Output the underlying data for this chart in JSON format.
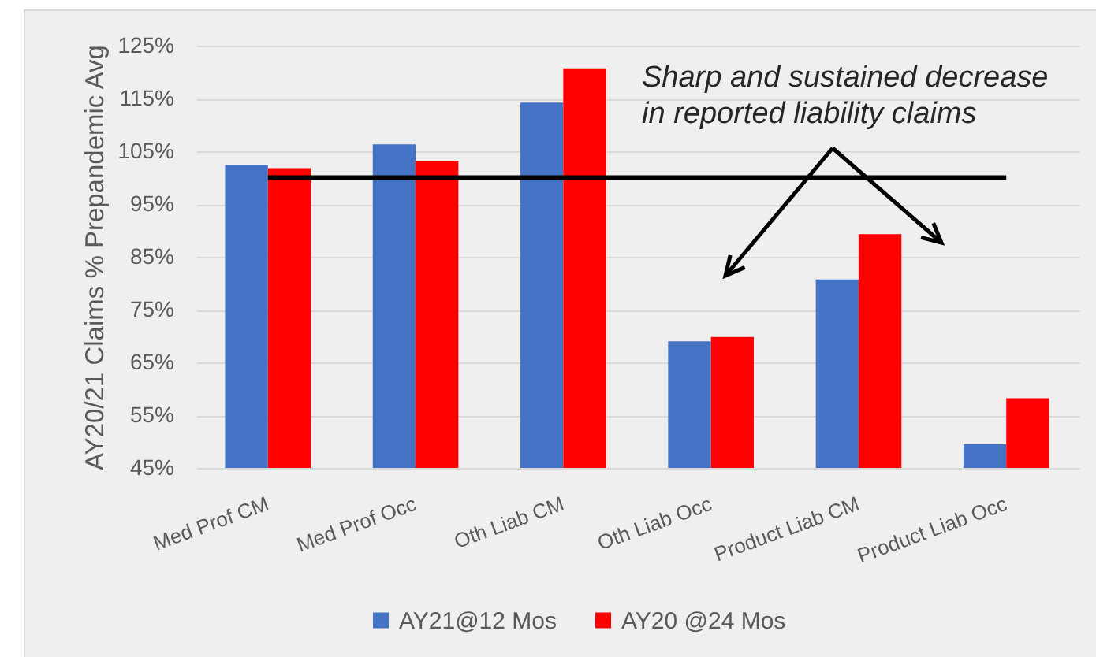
{
  "chart_data": {
    "type": "bar",
    "categories": [
      "Med Prof CM",
      "Med Prof Occ",
      "Oth Liab CM",
      "Oth Liab Occ",
      "Product Liab CM",
      "Product Liab Occ"
    ],
    "series": [
      {
        "name": "AY21@12 Mos",
        "color": "#4472c4",
        "values": [
          102.4,
          106.3,
          114.2,
          69.0,
          80.7,
          49.5
        ]
      },
      {
        "name": "AY20 @24 Mos",
        "color": "#ff0000",
        "values": [
          101.8,
          103.2,
          120.7,
          69.8,
          89.3,
          58.2
        ]
      }
    ],
    "ylabel": "AY20/21 Claims % Prepandemic Avg",
    "ylim": [
      45,
      125
    ],
    "yticks": [
      {
        "value": 45,
        "label": "45%"
      },
      {
        "value": 55,
        "label": "55%"
      },
      {
        "value": 65,
        "label": "65%"
      },
      {
        "value": 75,
        "label": "75%"
      },
      {
        "value": 85,
        "label": "85%"
      },
      {
        "value": 95,
        "label": "95%"
      },
      {
        "value": 105,
        "label": "105%"
      },
      {
        "value": 115,
        "label": "115%"
      },
      {
        "value": 125,
        "label": "125%"
      }
    ],
    "grid": "y",
    "legend": "bottom",
    "ref_lines": [
      {
        "axis": "y",
        "value": 100,
        "color": "#000000"
      }
    ],
    "annotations": [
      "Sharp and sustained decrease in reported liability claims"
    ]
  }
}
